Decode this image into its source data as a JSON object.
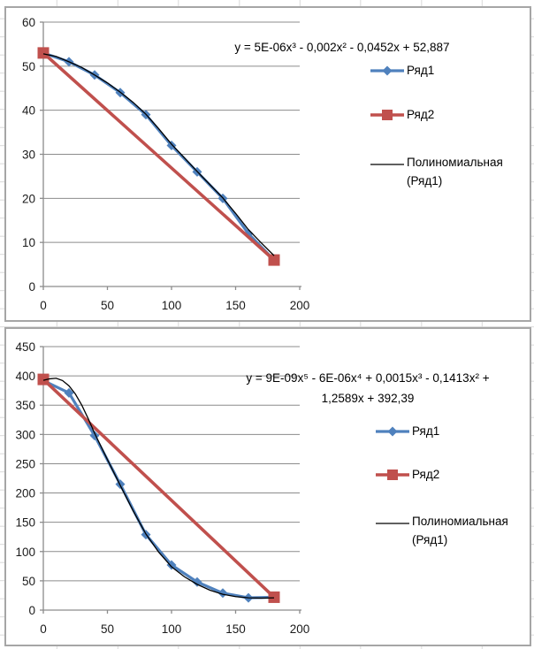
{
  "styles": {
    "series1_color": "#4F81BD",
    "series2_color": "#C0504D",
    "trendline_color": "#000000",
    "grid_color": "#8C8C8C",
    "axis_color": "#8C8C8C",
    "text_color": "#1A1A1A",
    "chart_border_color": "#A6A6A6",
    "sheet_line_color": "#D9D9D9"
  },
  "chart_data": [
    {
      "type": "line",
      "title": "",
      "xlabel": "",
      "ylabel": "",
      "equation_lines": [
        "y = 5E-06x³ - 0,002x² - 0,0452x + 52,887"
      ],
      "x": [
        0,
        20,
        40,
        60,
        80,
        100,
        120,
        140,
        160,
        180
      ],
      "series": [
        {
          "name": "Ряд1",
          "color": "#4F81BD",
          "marker": "diamond",
          "values": [
            53,
            51,
            48,
            44,
            39,
            32,
            26,
            20,
            12,
            6
          ]
        },
        {
          "name": "Ряд2",
          "color": "#C0504D",
          "marker": "square",
          "points": [
            [
              0,
              53
            ],
            [
              180,
              6
            ]
          ]
        },
        {
          "name": "Полиномиальная (Ряд1)",
          "color": "#000000",
          "style": "trendline",
          "points": [
            [
              0,
              52.8
            ],
            [
              10,
              52.2
            ],
            [
              20,
              51.0
            ],
            [
              30,
              49.7
            ],
            [
              40,
              48.0
            ],
            [
              50,
              46.2
            ],
            [
              60,
              44.1
            ],
            [
              70,
              41.8
            ],
            [
              80,
              39.1
            ],
            [
              90,
              35.8
            ],
            [
              100,
              32.3
            ],
            [
              110,
              29.2
            ],
            [
              120,
              26.1
            ],
            [
              130,
              23.1
            ],
            [
              140,
              20.1
            ],
            [
              150,
              16.6
            ],
            [
              160,
              12.9
            ],
            [
              170,
              9.9
            ],
            [
              180,
              7.0
            ]
          ]
        }
      ],
      "xlim": [
        0,
        200
      ],
      "ylim": [
        0,
        60
      ],
      "xticks": [
        0,
        50,
        100,
        150,
        200
      ],
      "yticks": [
        0,
        10,
        20,
        30,
        40,
        50,
        60
      ],
      "grid": "horizontal-major",
      "legend_position": "right"
    },
    {
      "type": "line",
      "title": "",
      "xlabel": "",
      "ylabel": "",
      "equation_lines": [
        "y = 9E-09x⁵ - 6E-06x⁴ + 0,0015x³ - 0,1413x² +",
        "1,2589x + 392,39"
      ],
      "x": [
        0,
        20,
        40,
        60,
        80,
        100,
        120,
        140,
        160,
        180
      ],
      "series": [
        {
          "name": "Ряд1",
          "color": "#4F81BD",
          "marker": "diamond",
          "values": [
            392,
            371,
            298,
            215,
            129,
            77,
            48,
            29,
            21,
            22
          ]
        },
        {
          "name": "Ряд2",
          "color": "#C0504D",
          "marker": "square",
          "points": [
            [
              0,
              394
            ],
            [
              180,
              22
            ]
          ]
        },
        {
          "name": "Полиномиальная (Ряд1)",
          "color": "#000000",
          "style": "trendline",
          "points": [
            [
              0,
              392.4
            ],
            [
              5,
              395
            ],
            [
              10,
              396
            ],
            [
              15,
              392
            ],
            [
              20,
              383
            ],
            [
              25,
              369
            ],
            [
              30,
              350
            ],
            [
              35,
              327
            ],
            [
              40,
              302
            ],
            [
              50,
              257
            ],
            [
              60,
              213
            ],
            [
              70,
              170
            ],
            [
              80,
              130
            ],
            [
              90,
              99
            ],
            [
              100,
              74
            ],
            [
              110,
              57
            ],
            [
              120,
              44
            ],
            [
              130,
              34
            ],
            [
              140,
              27
            ],
            [
              150,
              23
            ],
            [
              160,
              21
            ],
            [
              170,
              20.5
            ],
            [
              180,
              21
            ]
          ]
        }
      ],
      "xlim": [
        0,
        200
      ],
      "ylim": [
        0,
        450
      ],
      "xticks": [
        0,
        50,
        100,
        150,
        200
      ],
      "yticks": [
        0,
        50,
        100,
        150,
        200,
        250,
        300,
        350,
        400,
        450
      ],
      "grid": "horizontal-major",
      "legend_position": "right"
    }
  ]
}
